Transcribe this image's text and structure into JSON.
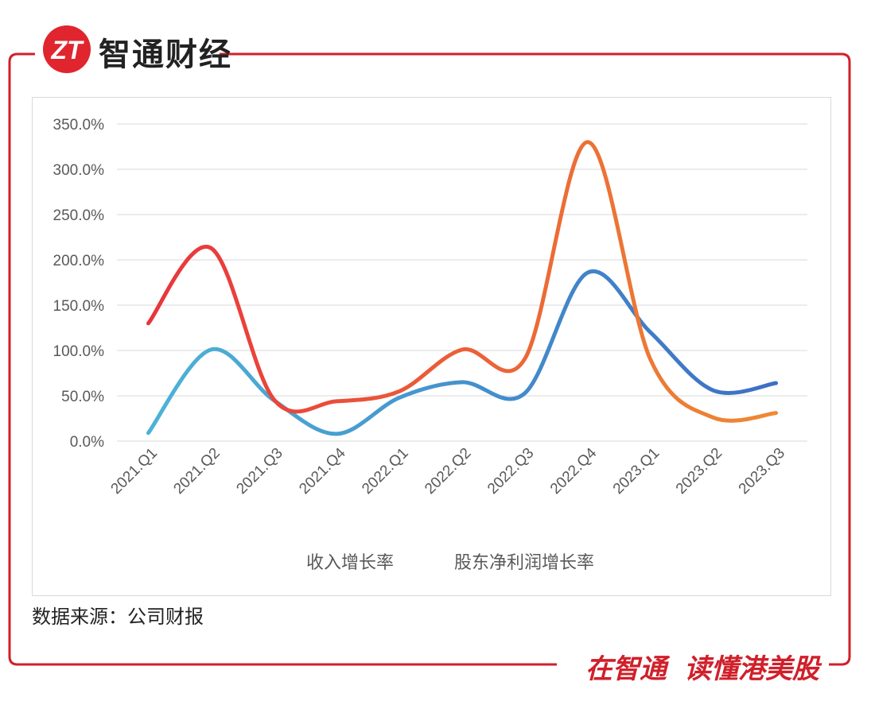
{
  "header": {
    "logo_mark": "ZT",
    "brand_name": "智通财经"
  },
  "footer": {
    "source": "数据来源：公司财报",
    "slogan_left": "在智通",
    "slogan_right": "读懂港美股"
  },
  "colors": {
    "frame": "#d0202a",
    "logo": "#e0252e",
    "grid": "#d9d9d9"
  },
  "chart_data": {
    "type": "line",
    "categories": [
      "2021.Q1",
      "2021.Q2",
      "2021.Q3",
      "2021.Q4",
      "2022.Q1",
      "2022.Q2",
      "2022.Q3",
      "2022.Q4",
      "2023.Q1",
      "2023.Q2",
      "2023.Q3"
    ],
    "yticks": [
      "0.0%",
      "50.0%",
      "100.0%",
      "150.0%",
      "200.0%",
      "250.0%",
      "300.0%",
      "350.0%"
    ],
    "ylim": [
      0,
      350
    ],
    "grid": true,
    "legend_position": "bottom",
    "series": [
      {
        "name": "收入增长率",
        "values": [
          9,
          101,
          45,
          8,
          48,
          65,
          53,
          186,
          120,
          56,
          64
        ],
        "color_start": "#4db3d6",
        "color_end": "#3d6fc4"
      },
      {
        "name": "股东净利润增长率",
        "values": [
          130,
          213,
          46,
          44,
          55,
          101,
          91,
          330,
          90,
          26,
          31
        ],
        "color_start": "#e8353c",
        "color_end": "#ee8a33"
      }
    ]
  }
}
